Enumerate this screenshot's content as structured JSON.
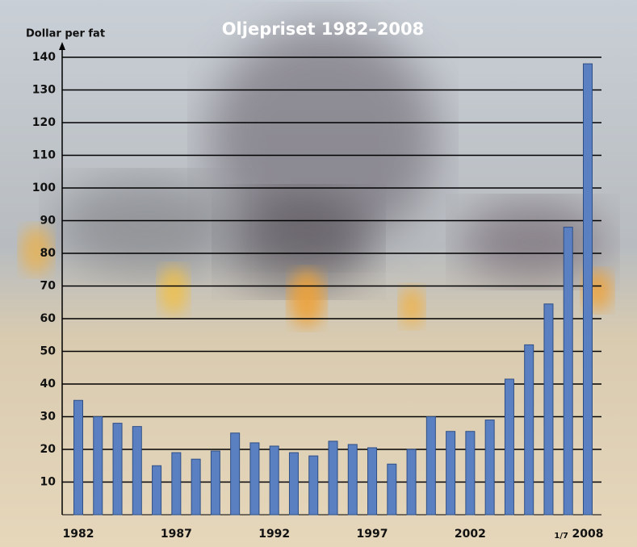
{
  "chart_data": {
    "type": "bar",
    "title": "Oljepriset 1982–2008",
    "y_label": "Dollar per fat",
    "categories": [
      "1982",
      null,
      null,
      null,
      null,
      "1987",
      null,
      null,
      null,
      null,
      "1992",
      null,
      null,
      null,
      null,
      "1997",
      null,
      null,
      null,
      null,
      "2002",
      null,
      null,
      null,
      null,
      null,
      "2008"
    ],
    "annotations": [
      "1/7"
    ],
    "values": [
      35,
      30,
      28,
      27,
      15,
      19,
      17,
      19.5,
      25,
      22,
      21,
      19,
      18,
      22.5,
      21.5,
      20.5,
      15.5,
      20,
      30,
      25.5,
      25.5,
      29,
      41.5,
      52,
      64.5,
      88,
      138
    ],
    "color": "#5b80c2",
    "ylim": [
      0,
      140
    ],
    "yticks": [
      10,
      20,
      30,
      40,
      50,
      60,
      70,
      80,
      90,
      100,
      110,
      120,
      130,
      140
    ],
    "grid": true
  }
}
